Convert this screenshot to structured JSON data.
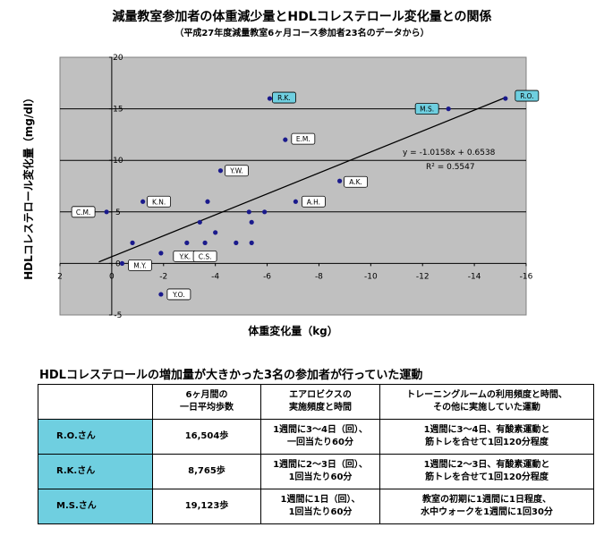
{
  "chart_data": {
    "type": "scatter",
    "title": "減量教室参加者の体重減少量とHDLコレステロール変化量との関係",
    "subtitle": "（平成27年度減量教室6ヶ月コース参加者23名のデータから）",
    "xlabel": "体重変化量（kg）",
    "ylabel": "HDLコレステロール変化量（mg/dl）",
    "xlim": [
      2,
      -16
    ],
    "ylim": [
      -5,
      20
    ],
    "x_ticks": [
      "2",
      "0",
      "-2",
      "-4",
      "-6",
      "-8",
      "-10",
      "-12",
      "-14",
      "-16"
    ],
    "y_ticks": [
      "-5",
      "0",
      "5",
      "10",
      "15",
      "20"
    ],
    "grid": true,
    "points": [
      {
        "x": 0.2,
        "y": 5
      },
      {
        "x": -0.4,
        "y": 0
      },
      {
        "x": -0.8,
        "y": 2
      },
      {
        "x": -1.9,
        "y": 1
      },
      {
        "x": -1.2,
        "y": 6
      },
      {
        "x": -1.9,
        "y": -3
      },
      {
        "x": -2.9,
        "y": 2
      },
      {
        "x": -3.4,
        "y": 4
      },
      {
        "x": -3.6,
        "y": 2
      },
      {
        "x": -3.7,
        "y": 6
      },
      {
        "x": -4.0,
        "y": 3
      },
      {
        "x": -4.2,
        "y": 9
      },
      {
        "x": -4.8,
        "y": 2
      },
      {
        "x": -5.3,
        "y": 5
      },
      {
        "x": -5.4,
        "y": 4
      },
      {
        "x": -5.4,
        "y": 2
      },
      {
        "x": -5.9,
        "y": 5
      },
      {
        "x": -6.1,
        "y": 16
      },
      {
        "x": -6.7,
        "y": 12
      },
      {
        "x": -7.1,
        "y": 6
      },
      {
        "x": -8.8,
        "y": 8
      },
      {
        "x": -13.0,
        "y": 15
      },
      {
        "x": -15.2,
        "y": 16
      }
    ],
    "labels": [
      {
        "text": "C.M.",
        "x": 0.2,
        "y": 5,
        "highlight": false
      },
      {
        "text": "M.Y.",
        "x": -0.4,
        "y": 0,
        "highlight": false
      },
      {
        "text": "K.N.",
        "x": -1.2,
        "y": 6,
        "highlight": false
      },
      {
        "text": "Y.O.",
        "x": -1.9,
        "y": -3,
        "highlight": false
      },
      {
        "text": "Y.K.",
        "x": -2.9,
        "y": 2,
        "highlight": false
      },
      {
        "text": "C.S.",
        "x": -3.6,
        "y": 2,
        "highlight": false
      },
      {
        "text": "Y.W.",
        "x": -4.2,
        "y": 9,
        "highlight": false
      },
      {
        "text": "R.K.",
        "x": -6.1,
        "y": 16,
        "highlight": true
      },
      {
        "text": "E.M.",
        "x": -6.7,
        "y": 12,
        "highlight": false
      },
      {
        "text": "A.H.",
        "x": -7.1,
        "y": 6,
        "highlight": false
      },
      {
        "text": "A.K.",
        "x": -8.8,
        "y": 8,
        "highlight": false
      },
      {
        "text": "M.S.",
        "x": -13.0,
        "y": 15,
        "highlight": true
      },
      {
        "text": "R.O.",
        "x": -15.2,
        "y": 16,
        "highlight": true
      }
    ],
    "trendline": {
      "slope": -1.0158,
      "intercept": 0.6538,
      "equation": "y = -1.0158x + 0.6538",
      "r2": "R² = 0.5547"
    },
    "colors": {
      "plot_bg": "#c0c0c0",
      "point": "#1a1a8c",
      "highlight_label": "#6fcfe0"
    }
  },
  "table": {
    "title": "HDLコレステロールの増加量が大きかった3名の参加者が行っていた運動",
    "headers": [
      "",
      "6ヶ月間の\n一日平均歩数",
      "エアロビクスの\n実施頻度と時間",
      "トレーニングルームの利用頻度と時間、\nその他に実施していた運動"
    ],
    "rows": [
      {
        "name": "R.O.さん",
        "steps": "16,504歩",
        "aerobics": "1週間に3～4日（回）、\n一回当たり60分",
        "training": "1週間に3～4日、有酸素運動と\n筋トレを合せて1回120分程度"
      },
      {
        "name": "R.K.さん",
        "steps": "8,765歩",
        "aerobics": "1週間に2～3日（回）、\n1回当たり60分",
        "training": "1週間に2～3日、有酸素運動と\n筋トレを合せて1回120分程度"
      },
      {
        "name": "M.S.さん",
        "steps": "19,123歩",
        "aerobics": "1週間に1日（回）、\n1回当たり60分",
        "training": "教室の初期に1週間に1日程度、\n水中ウォークを1週間に1回30分"
      }
    ]
  }
}
